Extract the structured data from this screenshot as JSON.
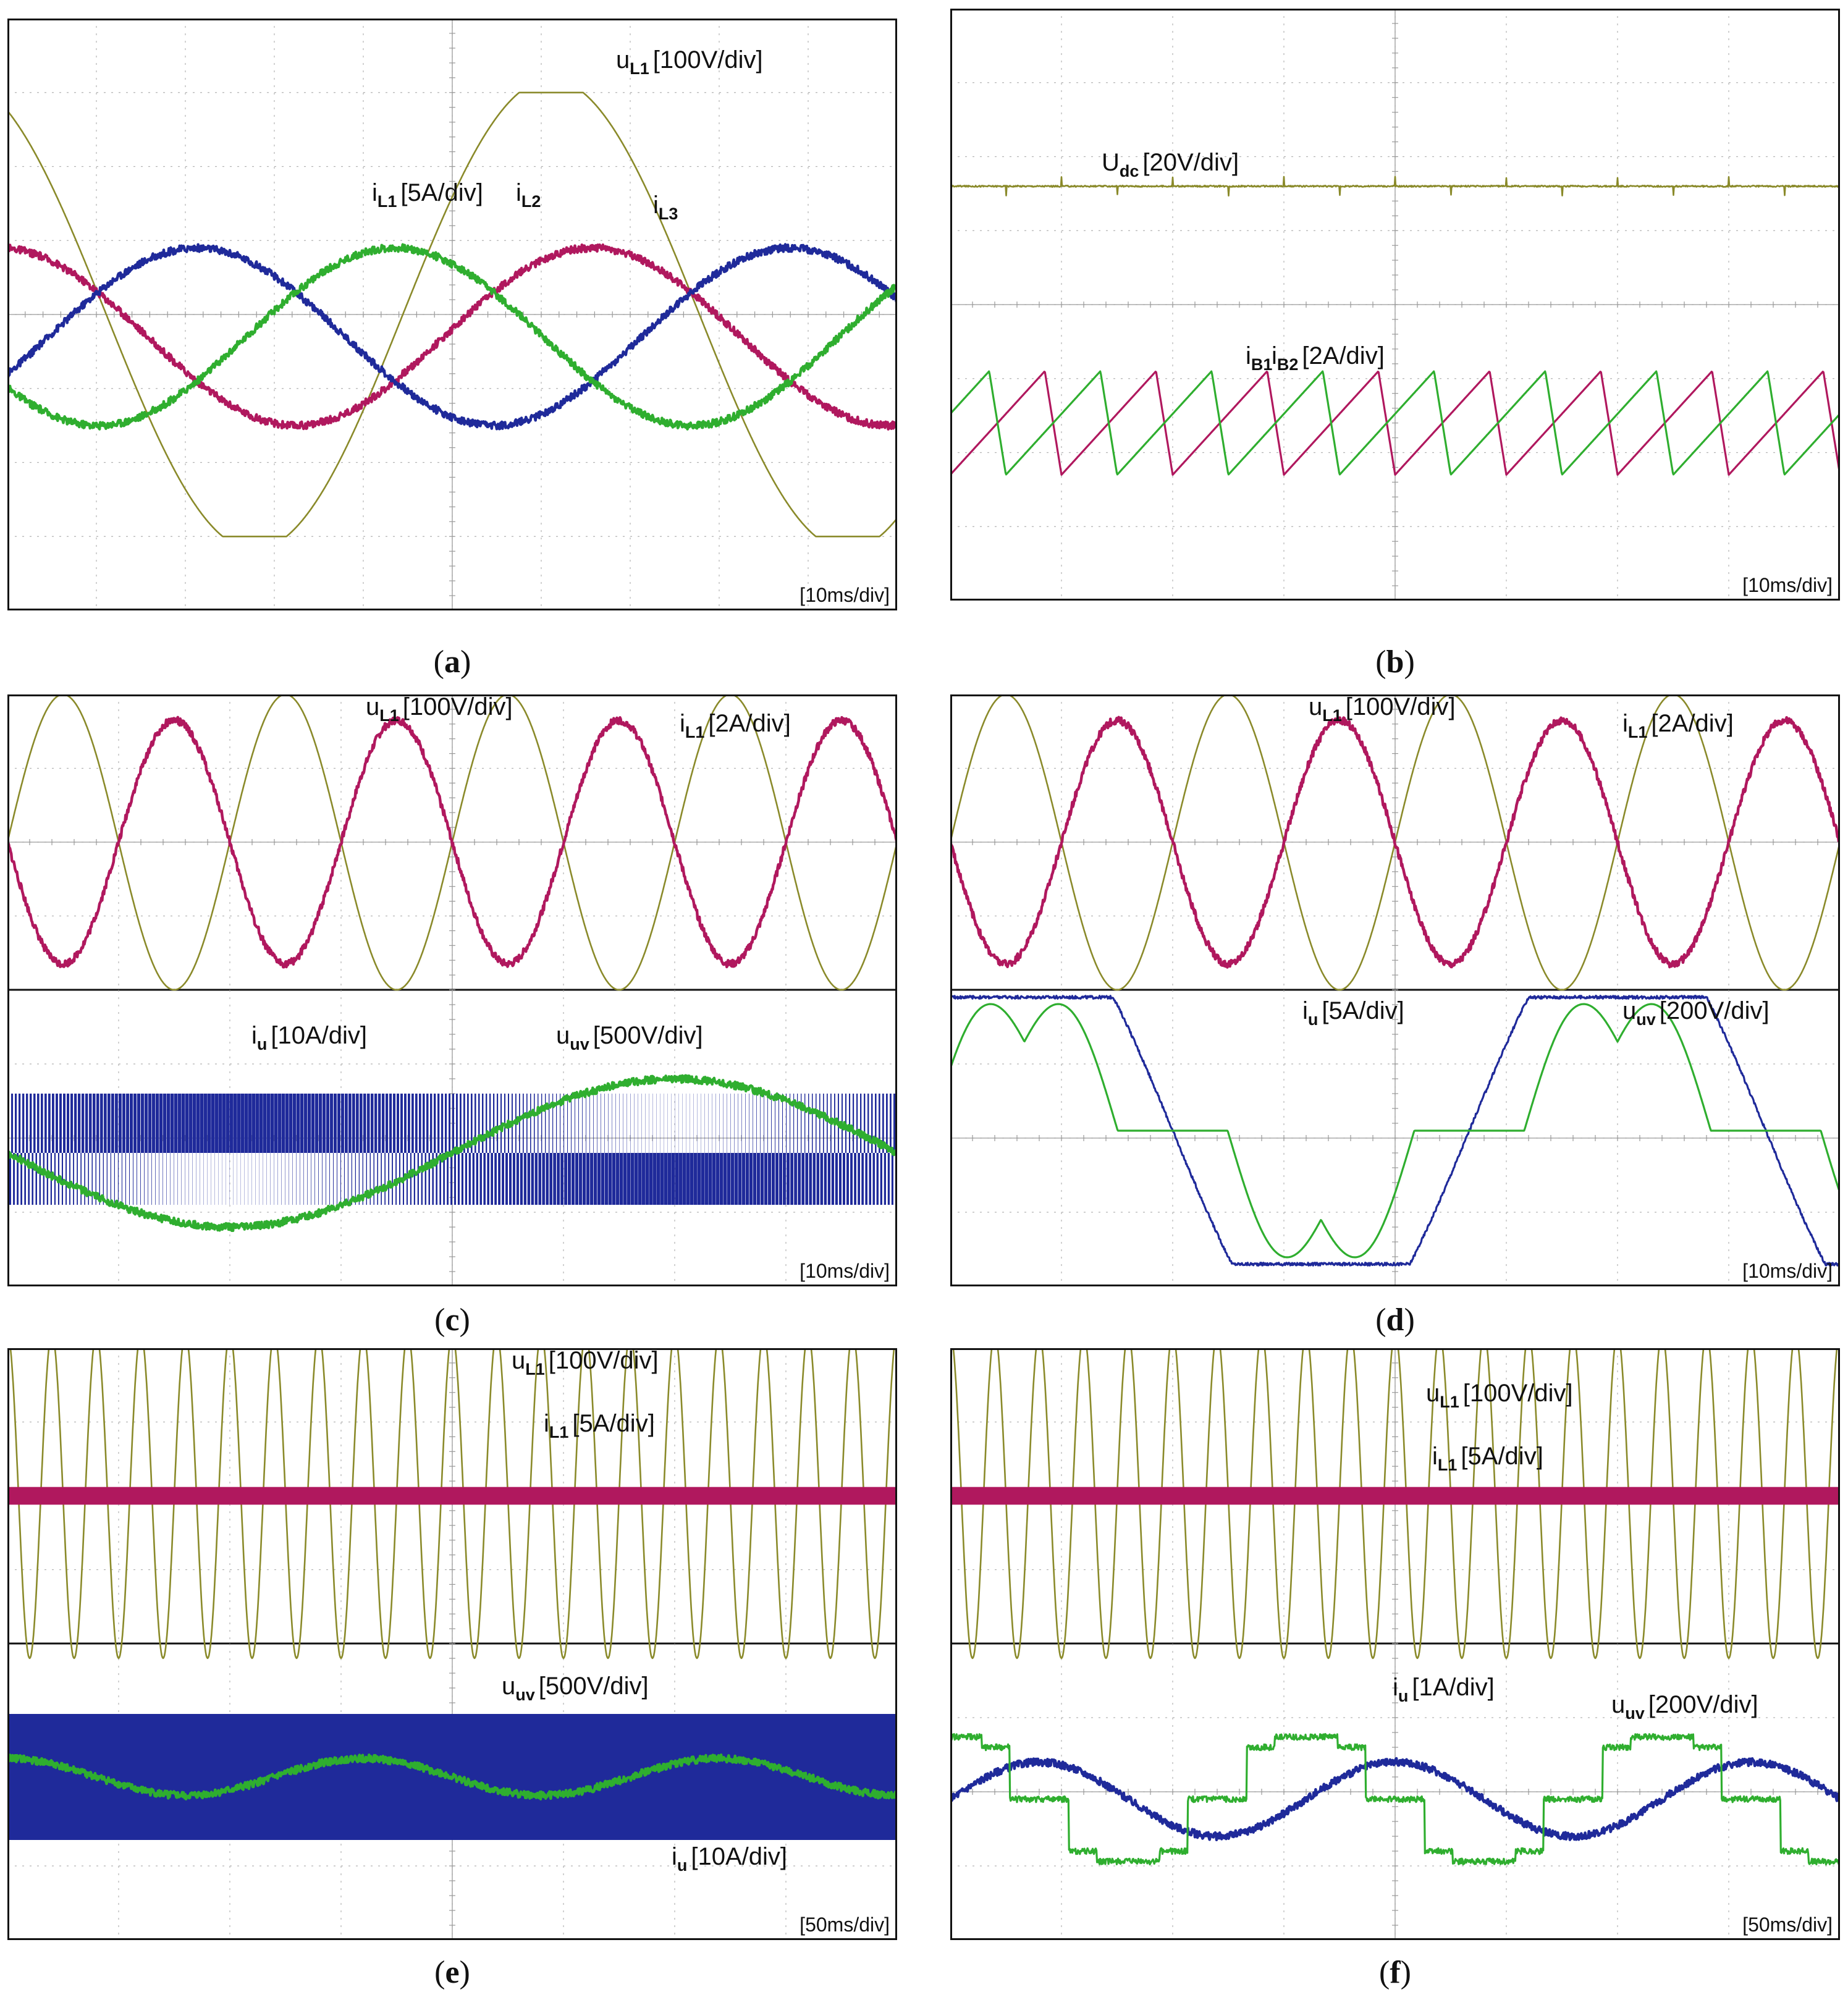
{
  "colors": {
    "olive": "#8a8a2a",
    "magenta": "#b0185e",
    "blue": "#1f2a9a",
    "green": "#2fae2f",
    "grid": "#9a9a9a",
    "frame": "#111111"
  },
  "panels": [
    {
      "id": "a",
      "caption": "a",
      "timebase": "[10ms/div]",
      "labels": [
        {
          "main": "u",
          "sub": "L1",
          "unit": "[100V/div]"
        },
        {
          "main": "i",
          "sub": "L1",
          "unit": "[5A/div]"
        },
        {
          "main": "i",
          "sub": "L2",
          "unit": ""
        },
        {
          "main": "i",
          "sub": "L3",
          "unit": ""
        }
      ]
    },
    {
      "id": "b",
      "caption": "b",
      "timebase": "[10ms/div]",
      "labels": [
        {
          "main": "U",
          "sub": "dc",
          "unit": "[20V/div]"
        },
        {
          "main": "i",
          "sub": "B1",
          "unit": ""
        },
        {
          "main": "i",
          "sub": "B2",
          "unit": "[2A/div]"
        }
      ]
    },
    {
      "id": "c",
      "caption": "c",
      "timebase": "[10ms/div]",
      "labels": [
        {
          "main": "u",
          "sub": "L1",
          "unit": "[100V/div]"
        },
        {
          "main": "i",
          "sub": "L1",
          "unit": "[2A/div]"
        },
        {
          "main": "i",
          "sub": "u",
          "unit": "[10A/div]"
        },
        {
          "main": "u",
          "sub": "uv",
          "unit": "[500V/div]"
        }
      ]
    },
    {
      "id": "d",
      "caption": "d",
      "timebase": "[10ms/div]",
      "labels": [
        {
          "main": "u",
          "sub": "L1",
          "unit": "[100V/div]"
        },
        {
          "main": "i",
          "sub": "L1",
          "unit": "[2A/div]"
        },
        {
          "main": "i",
          "sub": "u",
          "unit": "[5A/div]"
        },
        {
          "main": "u",
          "sub": "uv",
          "unit": "[200V/div]"
        }
      ]
    },
    {
      "id": "e",
      "caption": "e",
      "timebase": "[50ms/div]",
      "labels": [
        {
          "main": "u",
          "sub": "L1",
          "unit": "[100V/div]"
        },
        {
          "main": "i",
          "sub": "L1",
          "unit": "[5A/div]"
        },
        {
          "main": "u",
          "sub": "uv",
          "unit": "[500V/div]"
        },
        {
          "main": "i",
          "sub": "u",
          "unit": "[10A/div]"
        }
      ]
    },
    {
      "id": "f",
      "caption": "f",
      "timebase": "[50ms/div]",
      "labels": [
        {
          "main": "u",
          "sub": "L1",
          "unit": "[100V/div]"
        },
        {
          "main": "i",
          "sub": "L1",
          "unit": "[5A/div]"
        },
        {
          "main": "i",
          "sub": "u",
          "unit": "[1A/div]"
        },
        {
          "main": "u",
          "sub": "uv",
          "unit": "[200V/div]"
        }
      ]
    }
  ],
  "chart_data": [
    {
      "type": "line",
      "panel": "a",
      "x_unit": "div",
      "xlim": [
        0,
        10
      ],
      "ylim": [
        -4,
        4
      ],
      "series": [
        {
          "name": "uL1",
          "kind": "sine",
          "color": "olive",
          "amplitude_div": 3.0,
          "cycles": 1.5,
          "phase_deg": 120,
          "offset_div": 0,
          "clip_div": 3.0
        },
        {
          "name": "iL1",
          "kind": "sine",
          "color": "magenta",
          "amplitude_div": 1.2,
          "cycles": 1.5,
          "phase_deg": 95,
          "offset_div": -0.3
        },
        {
          "name": "iL2",
          "kind": "sine",
          "color": "blue",
          "amplitude_div": 1.2,
          "cycles": 1.5,
          "phase_deg": -25,
          "offset_div": -0.3
        },
        {
          "name": "iL3",
          "kind": "sine",
          "color": "green",
          "amplitude_div": 1.2,
          "cycles": 1.5,
          "phase_deg": -145,
          "offset_div": -0.3
        }
      ]
    },
    {
      "type": "line",
      "panel": "b",
      "x_unit": "div",
      "xlim": [
        0,
        8
      ],
      "ylim": [
        -4,
        4
      ],
      "series": [
        {
          "name": "Udc",
          "kind": "dc",
          "color": "olive",
          "level_div": 1.6,
          "spikes": 16
        },
        {
          "name": "iB1",
          "kind": "sawtooth",
          "color": "magenta",
          "cycles": 8,
          "low_div": -2.3,
          "high_div": -0.9,
          "phase": 0.0
        },
        {
          "name": "iB2",
          "kind": "sawtooth",
          "color": "green",
          "cycles": 8,
          "low_div": -2.3,
          "high_div": -0.9,
          "phase": 0.5
        }
      ]
    },
    {
      "type": "line",
      "panel": "c",
      "x_unit": "div",
      "xlim": [
        0,
        8
      ],
      "ylim": [
        -8,
        4
      ],
      "series": [
        {
          "name": "uL1",
          "kind": "sine",
          "color": "olive",
          "amplitude_div": 2.0,
          "cycles": 4,
          "phase_deg": 0,
          "offset_div": 0
        },
        {
          "name": "iL1",
          "kind": "sine",
          "color": "magenta",
          "amplitude_div": 1.65,
          "cycles": 4,
          "phase_deg": 180,
          "offset_div": 0
        },
        {
          "name": "uuv",
          "kind": "pwm",
          "color": "blue",
          "cycles": 1,
          "center_div": -5.8,
          "high_div": 0.8,
          "low_div": -0.7
        },
        {
          "name": "iu",
          "kind": "sine",
          "color": "green",
          "amplitude_div": 1.0,
          "cycles": 1,
          "phase_deg": 180,
          "offset_div": -5.8
        }
      ]
    },
    {
      "type": "line",
      "panel": "d",
      "x_unit": "div",
      "xlim": [
        0,
        8
      ],
      "ylim": [
        -8,
        4
      ],
      "series": [
        {
          "name": "uL1",
          "kind": "sine",
          "color": "olive",
          "amplitude_div": 2.0,
          "cycles": 4,
          "phase_deg": 0,
          "offset_div": 0
        },
        {
          "name": "iL1",
          "kind": "sine",
          "color": "magenta",
          "amplitude_div": 1.65,
          "cycles": 4,
          "phase_deg": 180,
          "offset_div": 0
        },
        {
          "name": "uuv",
          "kind": "trapezoid",
          "color": "blue",
          "cycles": 1.5,
          "center_div": -5.5,
          "amplitude_div": 1.8
        },
        {
          "name": "iu",
          "kind": "twinhump",
          "color": "green",
          "cycles": 1.5,
          "center_div": -5.5,
          "amplitude_div": 2.0
        }
      ]
    },
    {
      "type": "line",
      "panel": "e",
      "x_unit": "div",
      "xlim": [
        0,
        8
      ],
      "ylim": [
        -8,
        4
      ],
      "series": [
        {
          "name": "uL1",
          "kind": "sine",
          "color": "olive",
          "amplitude_div": 2.2,
          "cycles": 20,
          "phase_deg": 90,
          "offset_div": 0
        },
        {
          "name": "iL1",
          "kind": "band",
          "color": "magenta",
          "center_div": 0.0,
          "half_width_div": 0.12
        },
        {
          "name": "uuv",
          "kind": "band",
          "color": "blue",
          "center_div": -5.4,
          "half_width_div": 0.85
        },
        {
          "name": "iu",
          "kind": "sine",
          "color": "green",
          "amplitude_div": 0.25,
          "cycles": 2.5,
          "phase_deg": 90,
          "offset_div": -5.4
        }
      ]
    },
    {
      "type": "line",
      "panel": "f",
      "x_unit": "div",
      "xlim": [
        0,
        8
      ],
      "ylim": [
        -8,
        4
      ],
      "series": [
        {
          "name": "uL1",
          "kind": "sine",
          "color": "olive",
          "amplitude_div": 2.2,
          "cycles": 20,
          "phase_deg": 90,
          "offset_div": 0
        },
        {
          "name": "iL1",
          "kind": "band",
          "color": "magenta",
          "center_div": 0.0,
          "half_width_div": 0.12
        },
        {
          "name": "uuv",
          "kind": "sine",
          "color": "blue",
          "amplitude_div": 0.5,
          "cycles": 2.5,
          "phase_deg": 0,
          "offset_div": -5.7
        },
        {
          "name": "iu",
          "kind": "sixstep",
          "color": "green",
          "cycles": 2.5,
          "center_div": -5.7,
          "amplitude_div": 0.7
        }
      ]
    }
  ]
}
